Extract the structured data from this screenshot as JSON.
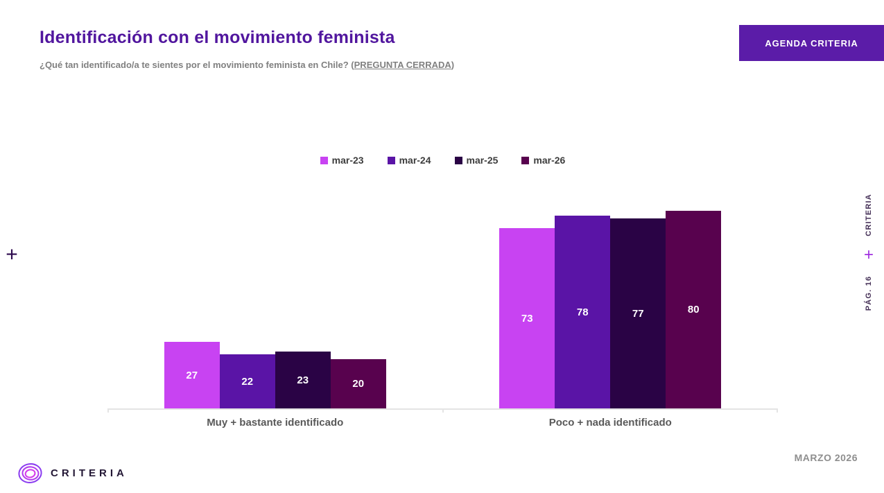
{
  "header": {
    "title": "Identificación con el movimiento feminista",
    "subtitle_prefix": "¿Qué tan identificado/a te sientes por el movimiento feminista en Chile? (",
    "subtitle_emphasis": "PREGUNTA CERRADA",
    "subtitle_suffix": ")",
    "button_label": "AGENDA CRITERIA"
  },
  "chart_data": {
    "type": "bar",
    "title": "Identificación con el movimiento feminista",
    "categories": [
      "Muy + bastante identificado",
      "Poco + nada identificado"
    ],
    "series": [
      {
        "name": "mar-23",
        "color": "#c843f2",
        "values": [
          27,
          73
        ]
      },
      {
        "name": "mar-24",
        "color": "#5a14a6",
        "values": [
          22,
          78
        ]
      },
      {
        "name": "mar-25",
        "color": "#2a0345",
        "values": [
          23,
          77
        ]
      },
      {
        "name": "mar-26",
        "color": "#58024e",
        "values": [
          20,
          80
        ]
      }
    ],
    "ylim": [
      0,
      85
    ],
    "value_labels": true,
    "legend_position": "top-center",
    "grid": false
  },
  "right_rail": {
    "brand": "CRITERIA",
    "plus": "+",
    "page": "PÁG. 16"
  },
  "left_rail": {
    "plus": "+"
  },
  "footer": {
    "logo_text": "CRITERIA",
    "date": "MARZO 2026"
  },
  "colors": {
    "title": "#51169e",
    "button_bg": "#5b1ca8",
    "axis": "#e4e4e4",
    "category_label": "#595959",
    "subtitle": "#808080"
  }
}
